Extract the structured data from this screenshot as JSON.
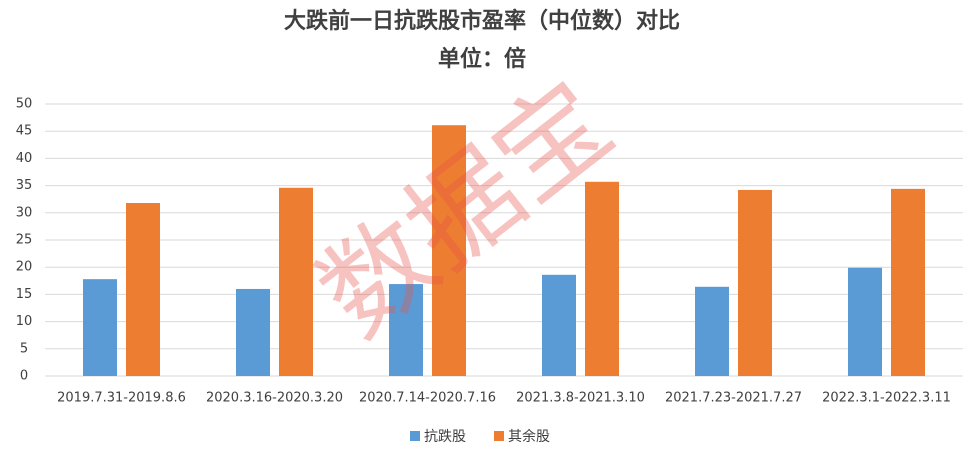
{
  "chart_data": {
    "type": "bar",
    "title": "大跌前一日抗跌股市盈率（中位数）对比",
    "subtitle": "单位：倍",
    "watermark": "数据宝",
    "categories": [
      "2019.7.31-2019.8.6",
      "2020.3.16-2020.3.20",
      "2020.7.14-2020.7.16",
      "2021.3.8-2021.3.10",
      "2021.7.23-2021.7.27",
      "2022.3.1-2022.3.11"
    ],
    "series": [
      {
        "name": "抗跌股",
        "color": "#5b9bd5",
        "values": [
          17.8,
          16.0,
          16.9,
          18.6,
          16.4,
          19.9
        ]
      },
      {
        "name": "其余股",
        "color": "#ed7d31",
        "values": [
          31.8,
          34.6,
          46.1,
          35.7,
          34.2,
          34.4
        ]
      }
    ],
    "ylim": [
      0,
      50
    ],
    "yticks": [
      0,
      5,
      10,
      15,
      20,
      25,
      30,
      35,
      40,
      45,
      50
    ],
    "grid": true,
    "legend": "bottom"
  }
}
